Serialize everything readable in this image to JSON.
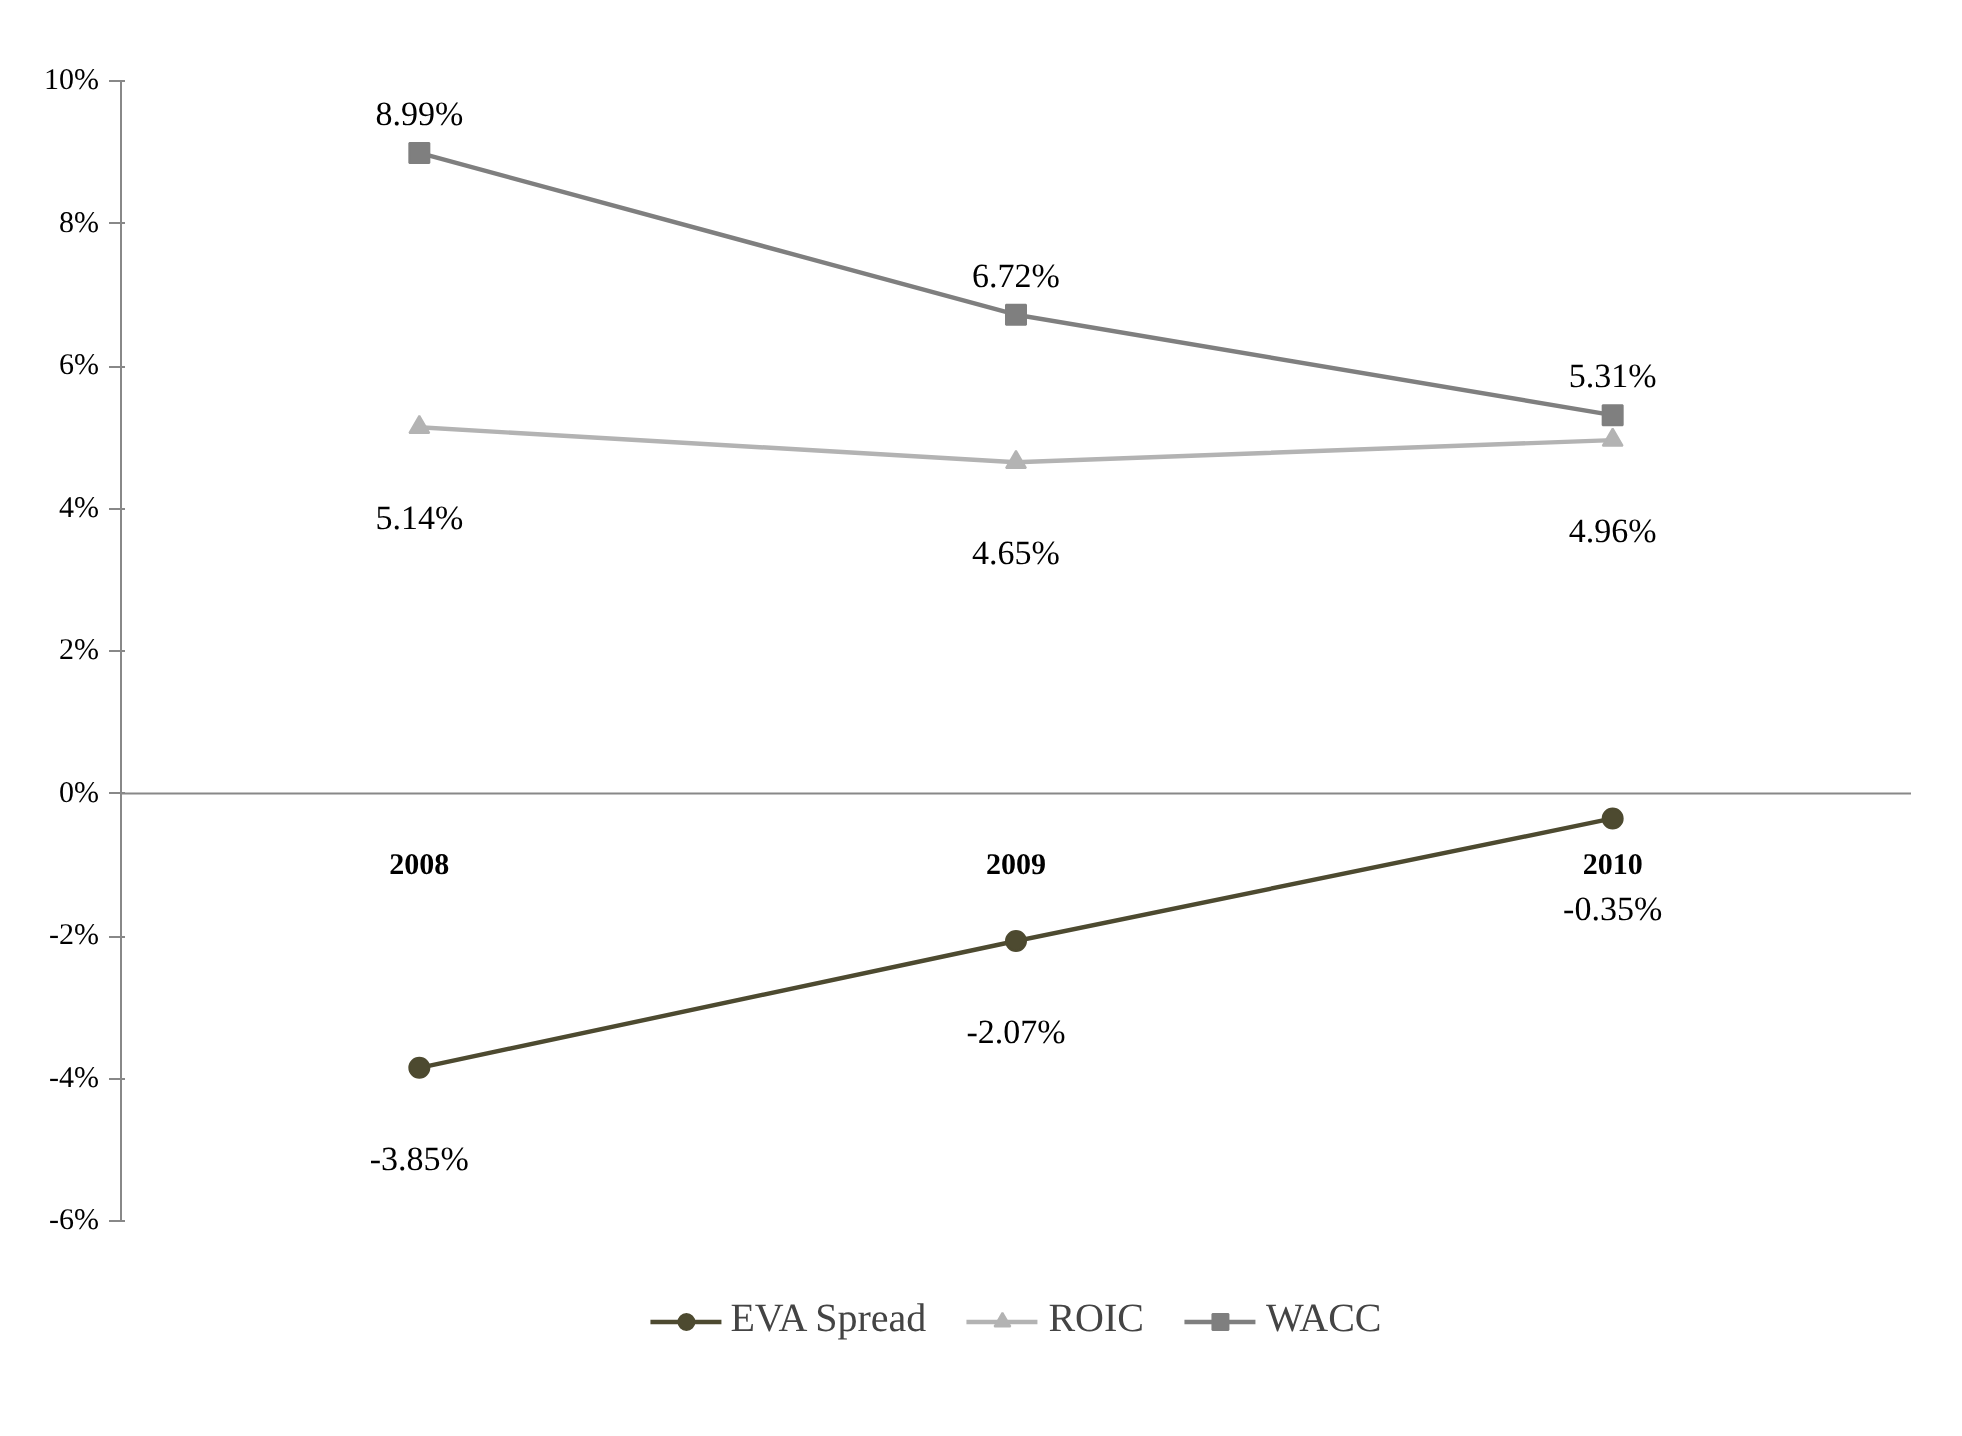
{
  "chart_data": {
    "type": "line",
    "categories": [
      "2008",
      "2009",
      "2010"
    ],
    "series": [
      {
        "name": "EVA Spread",
        "color": "#4d4a30",
        "marker": "circle",
        "values": [
          -3.85,
          -2.07,
          -0.35
        ],
        "value_labels": [
          "-3.85%",
          "-2.07%",
          "-0.35%"
        ]
      },
      {
        "name": "ROIC",
        "color": "#b3b3b3",
        "marker": "triangle",
        "values": [
          5.14,
          4.65,
          4.96
        ],
        "value_labels": [
          "5.14%",
          "4.65%",
          "4.96%"
        ]
      },
      {
        "name": "WACC",
        "color": "#7f7f7f",
        "marker": "square",
        "values": [
          8.99,
          6.72,
          5.31
        ],
        "value_labels": [
          "8.99%",
          "6.72%",
          "5.31%"
        ]
      }
    ],
    "ylim": [
      -6,
      10
    ],
    "yticks": [
      {
        "value": -6,
        "label": "-6%"
      },
      {
        "value": -4,
        "label": "-4%"
      },
      {
        "value": -2,
        "label": "-2%"
      },
      {
        "value": 0,
        "label": "0%"
      },
      {
        "value": 2,
        "label": "2%"
      },
      {
        "value": 4,
        "label": "4%"
      },
      {
        "value": 6,
        "label": "6%"
      },
      {
        "value": 8,
        "label": "8%"
      },
      {
        "value": 10,
        "label": "10%"
      }
    ],
    "grid": false,
    "legend": "bottom"
  }
}
